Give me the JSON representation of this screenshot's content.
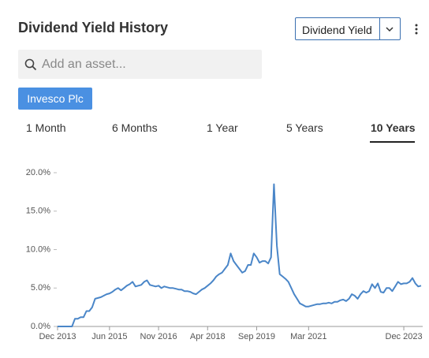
{
  "header": {
    "title": "Dividend Yield History",
    "dropdown": "Dividend Yield"
  },
  "search": {
    "placeholder": "Add an asset..."
  },
  "assets": [
    "Invesco Plc"
  ],
  "tabs": [
    "1 Month",
    "6 Months",
    "1 Year",
    "5 Years",
    "10 Years"
  ],
  "active_tab": 4,
  "chart_data": {
    "type": "line",
    "color": "#4a86c8",
    "grid": false,
    "xlim": [
      "2013-12",
      "2024-06"
    ],
    "xticks": [
      {
        "value": "2013-12",
        "label": "Dec 2013"
      },
      {
        "value": "2015-06",
        "label": "Jun 2015"
      },
      {
        "value": "2016-11",
        "label": "Nov 2016"
      },
      {
        "value": "2018-04",
        "label": "Apr 2018"
      },
      {
        "value": "2019-09",
        "label": "Sep 2019"
      },
      {
        "value": "2021-03",
        "label": "Mar 2021"
      },
      {
        "value": "2023-12",
        "label": "Dec 2023"
      }
    ],
    "ylim": [
      0,
      20
    ],
    "yticks": [
      {
        "value": 0,
        "label": "0.0%"
      },
      {
        "value": 5,
        "label": "5.0%"
      },
      {
        "value": 10,
        "label": "10.0%"
      },
      {
        "value": 15,
        "label": "15.0%"
      },
      {
        "value": 20,
        "label": "20.0%"
      }
    ],
    "x": [
      "2013-12",
      "2014-01",
      "2014-02",
      "2014-03",
      "2014-04",
      "2014-05",
      "2014-06",
      "2014-07",
      "2014-08",
      "2014-09",
      "2014-10",
      "2014-11",
      "2014-12",
      "2015-01",
      "2015-02",
      "2015-03",
      "2015-04",
      "2015-05",
      "2015-06",
      "2015-07",
      "2015-08",
      "2015-09",
      "2015-10",
      "2015-11",
      "2015-12",
      "2016-01",
      "2016-02",
      "2016-03",
      "2016-04",
      "2016-05",
      "2016-06",
      "2016-07",
      "2016-08",
      "2016-09",
      "2016-10",
      "2016-11",
      "2016-12",
      "2017-01",
      "2017-02",
      "2017-03",
      "2017-04",
      "2017-05",
      "2017-06",
      "2017-07",
      "2017-08",
      "2017-09",
      "2017-10",
      "2017-11",
      "2017-12",
      "2018-01",
      "2018-02",
      "2018-03",
      "2018-04",
      "2018-05",
      "2018-06",
      "2018-07",
      "2018-08",
      "2018-09",
      "2018-10",
      "2018-11",
      "2018-12",
      "2019-01",
      "2019-02",
      "2019-03",
      "2019-04",
      "2019-05",
      "2019-06",
      "2019-07",
      "2019-08",
      "2019-09",
      "2019-10",
      "2019-11",
      "2019-12",
      "2020-01",
      "2020-02",
      "2020-03",
      "2020-04",
      "2020-05",
      "2020-06",
      "2020-07",
      "2020-08",
      "2020-09",
      "2020-10",
      "2020-11",
      "2020-12",
      "2021-01",
      "2021-02",
      "2021-03",
      "2021-04",
      "2021-05",
      "2021-06",
      "2021-07",
      "2021-08",
      "2021-09",
      "2021-10",
      "2021-11",
      "2021-12",
      "2022-01",
      "2022-02",
      "2022-03",
      "2022-04",
      "2022-05",
      "2022-06",
      "2022-07",
      "2022-08",
      "2022-09",
      "2022-10",
      "2022-11",
      "2022-12",
      "2023-01",
      "2023-02",
      "2023-03",
      "2023-04",
      "2023-05",
      "2023-06",
      "2023-07",
      "2023-08",
      "2023-09",
      "2023-10",
      "2023-11",
      "2023-12",
      "2024-01",
      "2024-02",
      "2024-03",
      "2024-04",
      "2024-05",
      "2024-06"
    ],
    "values": [
      0,
      0,
      0,
      0,
      0,
      0,
      1,
      1,
      1.2,
      1.2,
      2,
      2,
      2.5,
      3.6,
      3.7,
      3.8,
      4,
      4.2,
      4.3,
      4.5,
      4.8,
      5,
      4.7,
      5,
      5.3,
      5.5,
      5.8,
      5.2,
      5.3,
      5.4,
      5.8,
      6,
      5.4,
      5.3,
      5.2,
      5.3,
      5,
      5.2,
      5.1,
      5,
      5,
      4.9,
      4.8,
      4.8,
      4.6,
      4.6,
      4.5,
      4.3,
      4.2,
      4.5,
      4.8,
      5,
      5.3,
      5.6,
      6,
      6.5,
      6.8,
      7,
      7.5,
      8,
      9.5,
      8.5,
      8,
      7.5,
      7,
      7.2,
      8,
      8,
      9.5,
      9,
      8.3,
      8.5,
      8.5,
      8.2,
      9,
      18.5,
      10.5,
      6.8,
      6.5,
      6.2,
      5.8,
      5,
      4.2,
      3.6,
      3,
      2.8,
      2.6,
      2.6,
      2.7,
      2.8,
      2.9,
      2.9,
      3,
      3,
      3.1,
      3,
      3.2,
      3.2,
      3.4,
      3.5,
      3.3,
      3.6,
      4.2,
      4,
      3.6,
      4.2,
      4.6,
      4.4,
      4.6,
      5.5,
      5,
      5.6,
      4.5,
      4.4,
      5,
      5,
      4.6,
      5.2,
      5.8,
      5.5,
      5.6,
      5.6,
      5.8,
      6.3,
      5.6,
      5.2,
      5.3
    ]
  }
}
